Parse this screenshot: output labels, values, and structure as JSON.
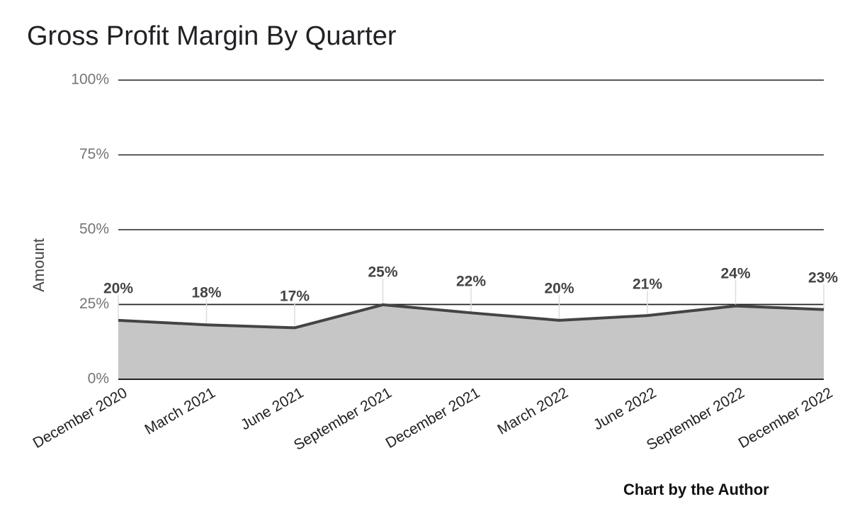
{
  "title": "Gross Profit Margin By Quarter",
  "credit": "Chart by the Author",
  "chart_data": {
    "type": "area",
    "title": "Gross Profit Margin By Quarter",
    "xlabel": "",
    "ylabel": "Amount",
    "ylim": [
      0,
      1
    ],
    "yticks": [
      {
        "value": 0,
        "label": "0%"
      },
      {
        "value": 0.25,
        "label": "25%"
      },
      {
        "value": 0.5,
        "label": "50%"
      },
      {
        "value": 0.75,
        "label": "75%"
      },
      {
        "value": 1,
        "label": "100%"
      }
    ],
    "categories": [
      "December 2020",
      "March 2021",
      "June 2021",
      "September 2021",
      "December 2021",
      "March 2022",
      "June 2022",
      "September 2022",
      "December 2022"
    ],
    "series": [
      {
        "values": [
          0.197,
          0.182,
          0.172,
          0.249,
          0.222,
          0.197,
          0.213,
          0.245,
          0.233
        ],
        "labels": [
          "20%",
          "18%",
          "17%",
          "25%",
          "22%",
          "20%",
          "21%",
          "24%",
          "23%"
        ]
      }
    ],
    "grid": true,
    "legend": "none",
    "colors": {
      "line": "#444444",
      "fill": "#c6c6c6",
      "grid": "#222222"
    }
  }
}
